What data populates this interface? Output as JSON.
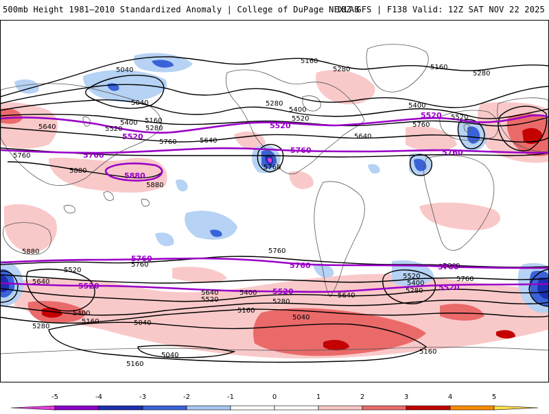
{
  "header": {
    "title": "500mb Height 1981–2010 Standardized Anomaly | College of DuPage NEXLAB",
    "run_info": "18Z GFS | F138 Valid: 12Z SAT NOV 22 2025"
  },
  "contour_labels": {
    "c5040": "5040",
    "c5160": "5160",
    "c5280": "5280",
    "c5400": "5400",
    "c5520": "5520",
    "c5640": "5640",
    "c5760": "5760",
    "c5880": "5880"
  },
  "colorbar": {
    "ticks": [
      "-5",
      "-4",
      "-3",
      "-2",
      "-1",
      "0",
      "1",
      "2",
      "3",
      "4",
      "5"
    ],
    "colors": [
      "#e23fd8",
      "#8a00c8",
      "#1c2fb0",
      "#3a63d8",
      "#a7c6f2",
      "#ffffff",
      "#ffffff",
      "#f9c5c5",
      "#ea6a6a",
      "#c40000",
      "#ff8c00",
      "#ffe14d"
    ]
  },
  "colors": {
    "positive_light": "#f9c9c9",
    "positive_mid": "#ea6a6a",
    "positive_strong": "#c40000",
    "negative_light": "#b6d2f4",
    "negative_mid": "#3a63d8",
    "negative_strong": "#1c2fb0",
    "highlight_contour": "#9a00c8",
    "contour": "#000000",
    "coast": "#555555"
  }
}
